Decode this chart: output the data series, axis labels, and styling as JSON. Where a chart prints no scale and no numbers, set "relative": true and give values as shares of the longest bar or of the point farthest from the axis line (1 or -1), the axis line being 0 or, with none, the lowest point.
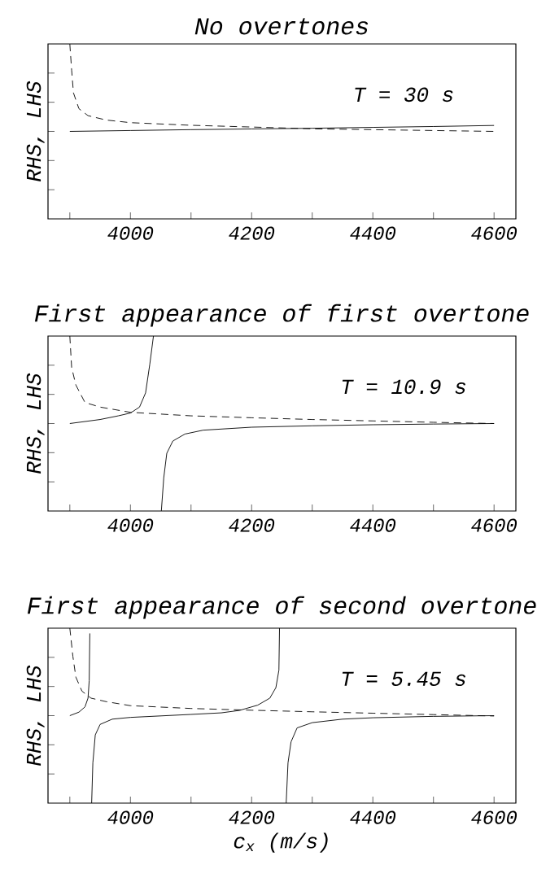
{
  "chart_data": [
    {
      "type": "line",
      "title": "No overtones",
      "ylabel": "RHS, LHS",
      "annotations": [
        "T = 30 s"
      ],
      "relative": true,
      "xlim": [
        3864,
        4636
      ],
      "xticks": [
        {
          "value": 3900,
          "label": null
        },
        4000,
        {
          "value": 4100,
          "label": null
        },
        4200,
        {
          "value": 4300,
          "label": null
        },
        4400,
        {
          "value": 4500,
          "label": null
        },
        4600
      ],
      "series": [
        {
          "color": "#000000",
          "line_style": "solid",
          "x": [
            3900,
            4000,
            4100,
            4200,
            4300,
            4400,
            4500,
            4600
          ],
          "values": [
            0.5,
            0.505,
            0.51,
            0.514,
            0.518,
            0.523,
            0.528,
            0.534
          ]
        },
        {
          "color": "#000000",
          "line_style": "dashed",
          "x": [
            3900,
            3903,
            3906,
            3915,
            3930,
            3960,
            4000,
            4100,
            4200,
            4300,
            4400,
            4500,
            4600
          ],
          "values": [
            1.0,
            0.85,
            0.72,
            0.63,
            0.59,
            0.565,
            0.55,
            0.535,
            0.525,
            0.515,
            0.51,
            0.505,
            0.5
          ]
        }
      ]
    },
    {
      "type": "line",
      "title": "First appearance of first overtone",
      "ylabel": "RHS, LHS",
      "annotations": [
        "T = 10.9 s"
      ],
      "relative": true,
      "xlim": [
        3864,
        4636
      ],
      "xticks": [
        {
          "value": 3900,
          "label": null
        },
        4000,
        {
          "value": 4100,
          "label": null
        },
        4200,
        {
          "value": 4300,
          "label": null
        },
        4400,
        {
          "value": 4500,
          "label": null
        },
        4600
      ],
      "series": [
        {
          "color": "#000000",
          "line_style": "solid",
          "x": [
            3900,
            3950,
            3980,
            4000,
            4015,
            4025,
            4032,
            4038,
            4045,
            4051,
            4055,
            4060,
            4070,
            4090,
            4120,
            4200,
            4300,
            4400,
            4500,
            4600
          ],
          "values": [
            0.5,
            0.523,
            0.544,
            0.56,
            0.594,
            0.675,
            0.84,
            1.0,
            null,
            0.0,
            0.19,
            0.33,
            0.4,
            0.44,
            0.462,
            0.479,
            0.487,
            0.493,
            0.497,
            0.5
          ]
        },
        {
          "color": "#000000",
          "line_style": "dashed",
          "x": [
            3900,
            3903,
            3910,
            3925,
            3950,
            4000,
            4100,
            4200,
            4300,
            4400,
            4500,
            4600
          ],
          "values": [
            1.0,
            0.82,
            0.72,
            0.62,
            0.594,
            0.564,
            0.544,
            0.533,
            0.523,
            0.515,
            0.507,
            0.5
          ]
        }
      ]
    },
    {
      "type": "line",
      "title": "First appearance of second overtone",
      "xlabel": "c$_{x}$ (m/s)",
      "ylabel": "RHS, LHS",
      "annotations": [
        "T = 5.45 s"
      ],
      "relative": true,
      "xlim": [
        3864,
        4636
      ],
      "xticks": [
        {
          "value": 3900,
          "label": null
        },
        4000,
        {
          "value": 4100,
          "label": null
        },
        4200,
        {
          "value": 4300,
          "label": null
        },
        4400,
        {
          "value": 4500,
          "label": null
        },
        4600
      ],
      "series": [
        {
          "color": "#000000",
          "line_style": "solid",
          "x": [
            3900,
            3915,
            3925,
            3930,
            3932,
            3933,
            3934,
            3936,
            3938,
            3942,
            3950,
            3970,
            4000,
            4100,
            4150,
            4180,
            4210,
            4230,
            4240,
            4245,
            4246,
            4250,
            4257,
            4260,
            4265,
            4275,
            4300,
            4350,
            4400,
            4500,
            4600
          ],
          "values": [
            0.5,
            0.52,
            0.55,
            0.6,
            0.7,
            0.97,
            null,
            0.0,
            0.23,
            0.39,
            0.45,
            0.48,
            0.49,
            0.507,
            0.516,
            0.53,
            0.56,
            0.6,
            0.66,
            0.76,
            1.0,
            null,
            0.0,
            0.23,
            0.35,
            0.43,
            0.46,
            0.48,
            0.488,
            0.496,
            0.5
          ]
        },
        {
          "color": "#000000",
          "line_style": "dashed",
          "x": [
            3900,
            3905,
            3910,
            3920,
            3935,
            3960,
            4000,
            4100,
            4200,
            4300,
            4400,
            4500,
            4600
          ],
          "values": [
            1.0,
            0.84,
            0.72,
            0.64,
            0.6,
            0.58,
            0.557,
            0.541,
            0.531,
            0.522,
            0.514,
            0.506,
            0.498
          ]
        }
      ]
    }
  ]
}
